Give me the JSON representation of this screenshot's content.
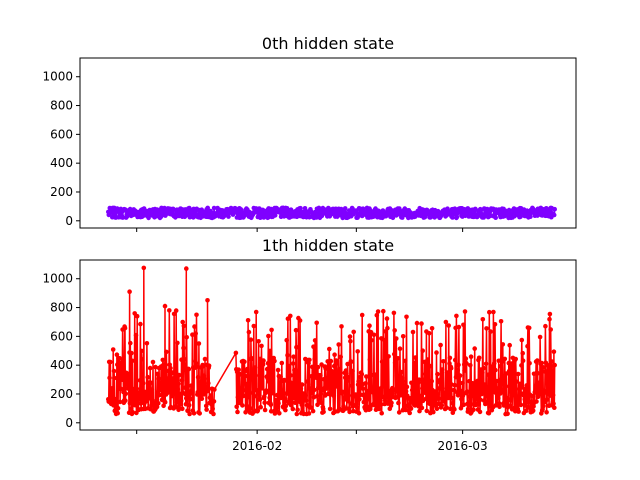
{
  "chart_data": [
    {
      "type": "line",
      "title": "0th hidden state",
      "xlabel": "",
      "ylabel": "",
      "ylim": [
        -50,
        1130
      ],
      "xlim": [
        "2016-01-07",
        "2016-03-17"
      ],
      "yticks": [
        "0",
        "200",
        "400",
        "600",
        "800",
        "1000"
      ],
      "ytick_values": [
        0,
        200,
        400,
        600,
        800,
        1000
      ],
      "xticks_labeled": false,
      "xtick_dates": [
        "2016-01-15",
        "2016-02-01",
        "2016-02-15",
        "2016-03-01"
      ],
      "series": [
        {
          "color": "#7f00ff",
          "marker": "circle",
          "start": "2016-01-11",
          "end": "2016-03-14",
          "typical_range": [
            20,
            90
          ],
          "note_values": "dense daily readings, roughly 25-100 throughout"
        }
      ]
    },
    {
      "type": "line",
      "title": "1th hidden state",
      "xlabel": "",
      "ylabel": "",
      "ylim": [
        -50,
        1130
      ],
      "xlim": [
        "2016-01-07",
        "2016-03-17"
      ],
      "yticks": [
        "0",
        "200",
        "400",
        "600",
        "800",
        "1000"
      ],
      "ytick_values": [
        0,
        200,
        400,
        600,
        800,
        1000
      ],
      "xticks": [
        "2016-02",
        "2016-03"
      ],
      "xtick_dates": [
        "2016-01-15",
        "2016-02-01",
        "2016-02-15",
        "2016-03-01"
      ],
      "xtick_label_dates": [
        "2016-02-01",
        "2016-03-01"
      ],
      "series": [
        {
          "color": "#ff0000",
          "marker": "circle",
          "gap": [
            "2016-01-26",
            "2016-01-29"
          ],
          "peaks": [
            {
              "date": "2016-01-16",
              "value": 1075
            },
            {
              "date": "2016-01-22",
              "value": 1070
            },
            {
              "date": "2016-01-14",
              "value": 910
            },
            {
              "date": "2016-01-25",
              "value": 850
            },
            {
              "date": "2016-01-19",
              "value": 810
            }
          ],
          "typical_range": [
            50,
            800
          ]
        }
      ]
    }
  ]
}
